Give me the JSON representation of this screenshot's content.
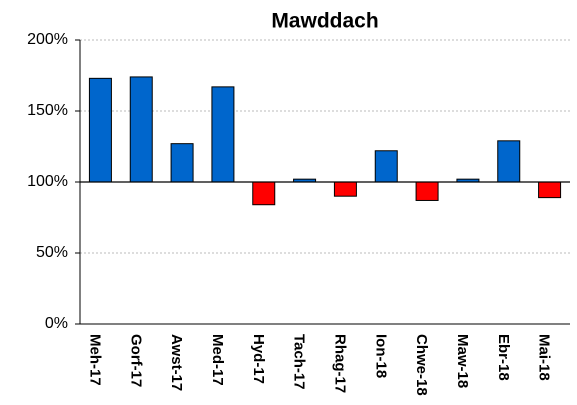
{
  "chart_data": {
    "type": "bar",
    "title": "Mawddach",
    "categories": [
      "Meh-17",
      "Gorf-17",
      "Awst-17",
      "Med-17",
      "Hyd-17",
      "Tach-17",
      "Rhag-17",
      "Ion-18",
      "Chwe-18",
      "Maw-18",
      "Ebr-18",
      "Mai-18"
    ],
    "values": [
      173,
      174,
      127,
      167,
      84,
      102,
      90,
      122,
      87,
      102,
      129,
      89
    ],
    "colors": [
      "#0066cc",
      "#0066cc",
      "#0066cc",
      "#0066cc",
      "#ff0000",
      "#0066cc",
      "#ff0000",
      "#0066cc",
      "#ff0000",
      "#0066cc",
      "#0066cc",
      "#ff0000"
    ],
    "baseline": 100,
    "ylim": [
      0,
      200
    ],
    "yticks": [
      {
        "value": 0,
        "label": "0%"
      },
      {
        "value": 50,
        "label": "50%"
      },
      {
        "value": 100,
        "label": "100%"
      },
      {
        "value": 150,
        "label": "150%"
      },
      {
        "value": 200,
        "label": "200%"
      }
    ],
    "grid": true
  }
}
